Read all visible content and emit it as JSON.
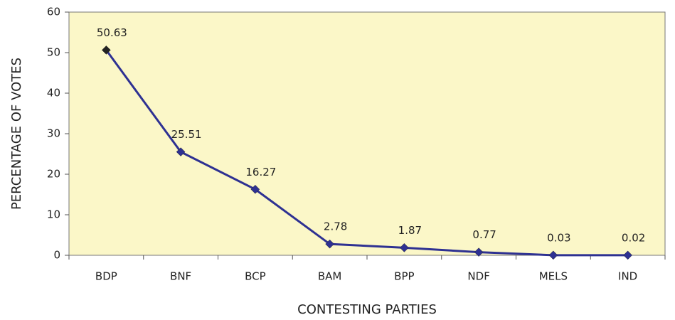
{
  "chart_data": {
    "type": "line",
    "x_label": "CONTESTING PARTIES",
    "y_label": "PERCENTAGE OF VOTES",
    "categories": [
      "BDP",
      "BNF",
      "BCP",
      "BAM",
      "BPP",
      "NDF",
      "MELS",
      "IND"
    ],
    "values": [
      50.63,
      25.51,
      16.27,
      2.78,
      1.87,
      0.77,
      0.03,
      0.02
    ],
    "color": "#2e3192",
    "background": "#fbf7c8",
    "ylim": [
      0,
      60
    ],
    "yticks": [
      0,
      10,
      20,
      30,
      40,
      50,
      60
    ],
    "grid": false
  }
}
